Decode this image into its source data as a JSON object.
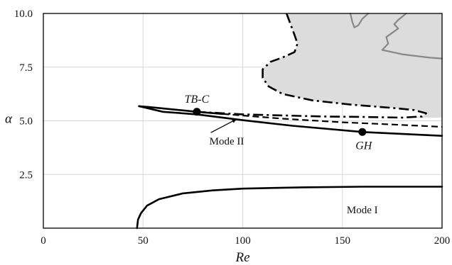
{
  "chart_data": {
    "type": "line",
    "xlabel": "Re",
    "ylabel": "α",
    "xlim": [
      0,
      200
    ],
    "ylim": [
      0,
      10
    ],
    "x_ticks": [
      0,
      50,
      100,
      150,
      200
    ],
    "y_ticks": [
      2.5,
      5.0,
      7.5,
      10.0
    ],
    "x_tick_labels": [
      "0",
      "50",
      "100",
      "150",
      "200"
    ],
    "y_tick_labels": [
      "2.5",
      "5.0",
      "7.5",
      "10.0"
    ],
    "grid": true,
    "colors": {
      "curve": "#000000",
      "shade": "#dcdcdc",
      "grey_curve": "#888888",
      "grid": "#d8d8d8"
    },
    "shaded_region": {
      "boundary": [
        [
          122,
          10
        ],
        [
          124,
          9.5
        ],
        [
          126,
          9.0
        ],
        [
          127.5,
          8.6
        ],
        [
          126,
          8.2
        ],
        [
          120,
          7.95
        ],
        [
          114,
          7.75
        ],
        [
          110,
          7.4
        ],
        [
          110,
          7.0
        ],
        [
          113,
          6.6
        ],
        [
          120,
          6.25
        ],
        [
          135,
          5.95
        ],
        [
          155,
          5.75
        ],
        [
          175,
          5.6
        ],
        [
          186,
          5.5
        ],
        [
          192,
          5.35
        ],
        [
          190,
          5.2
        ],
        [
          180,
          5.15
        ],
        [
          200,
          5.15
        ],
        [
          200,
          10
        ]
      ]
    },
    "series": [
      {
        "style": "solid",
        "points": [
          [
            47,
            0
          ],
          [
            47.5,
            0.4
          ],
          [
            49,
            0.7
          ],
          [
            52,
            1.05
          ],
          [
            58,
            1.35
          ],
          [
            70,
            1.62
          ],
          [
            85,
            1.76
          ],
          [
            100,
            1.84
          ],
          [
            130,
            1.9
          ],
          [
            160,
            1.93
          ],
          [
            200,
            1.93
          ]
        ]
      },
      {
        "style": "solid",
        "points": [
          [
            48,
            5.68
          ],
          [
            60,
            5.42
          ],
          [
            77,
            5.3
          ],
          [
            100,
            5.03
          ],
          [
            125,
            4.77
          ],
          [
            160,
            4.48
          ],
          [
            200,
            4.3
          ]
        ]
      },
      {
        "style": "solid",
        "points": [
          [
            48,
            5.68
          ],
          [
            53,
            5.64
          ],
          [
            65,
            5.53
          ],
          [
            77,
            5.42
          ],
          [
            90,
            5.32
          ]
        ]
      },
      {
        "style": "dashed",
        "points": [
          [
            90,
            5.32
          ],
          [
            120,
            5.1
          ],
          [
            150,
            4.93
          ],
          [
            175,
            4.83
          ],
          [
            200,
            4.72
          ]
        ]
      },
      {
        "style": "dashdot",
        "points": [
          [
            122,
            10
          ],
          [
            124,
            9.5
          ],
          [
            126,
            9.0
          ],
          [
            127.5,
            8.6
          ],
          [
            126,
            8.2
          ],
          [
            120,
            7.95
          ],
          [
            114,
            7.75
          ],
          [
            110,
            7.4
          ],
          [
            110,
            7.0
          ],
          [
            113,
            6.6
          ],
          [
            120,
            6.25
          ],
          [
            135,
            5.95
          ],
          [
            155,
            5.75
          ],
          [
            175,
            5.6
          ],
          [
            186,
            5.5
          ],
          [
            192,
            5.35
          ],
          [
            190,
            5.2
          ],
          [
            180,
            5.15
          ],
          [
            160,
            5.18
          ],
          [
            140,
            5.2
          ],
          [
            120,
            5.25
          ],
          [
            100,
            5.3
          ],
          [
            77,
            5.42
          ]
        ]
      },
      {
        "style": "grey",
        "points": [
          [
            154,
            10
          ],
          [
            155,
            9.6
          ],
          [
            156,
            9.35
          ],
          [
            158,
            9.45
          ],
          [
            160,
            9.75
          ],
          [
            163,
            10
          ]
        ]
      },
      {
        "style": "grey",
        "points": [
          [
            182,
            10
          ],
          [
            178,
            9.7
          ],
          [
            176,
            9.5
          ],
          [
            178,
            9.3
          ],
          [
            175,
            9.1
          ],
          [
            172,
            8.9
          ],
          [
            173,
            8.6
          ],
          [
            170,
            8.3
          ],
          [
            180,
            8.1
          ],
          [
            193,
            7.95
          ],
          [
            200,
            7.9
          ]
        ]
      }
    ],
    "markers": [
      {
        "label": "TB-C",
        "x": 77,
        "y": 5.42
      },
      {
        "label": "GH",
        "x": 160,
        "y": 4.48
      }
    ],
    "annotations": [
      {
        "text": "Mode II",
        "x": 92,
        "y": 3.9
      },
      {
        "text": "Mode I",
        "x": 160,
        "y": 0.7
      }
    ]
  }
}
